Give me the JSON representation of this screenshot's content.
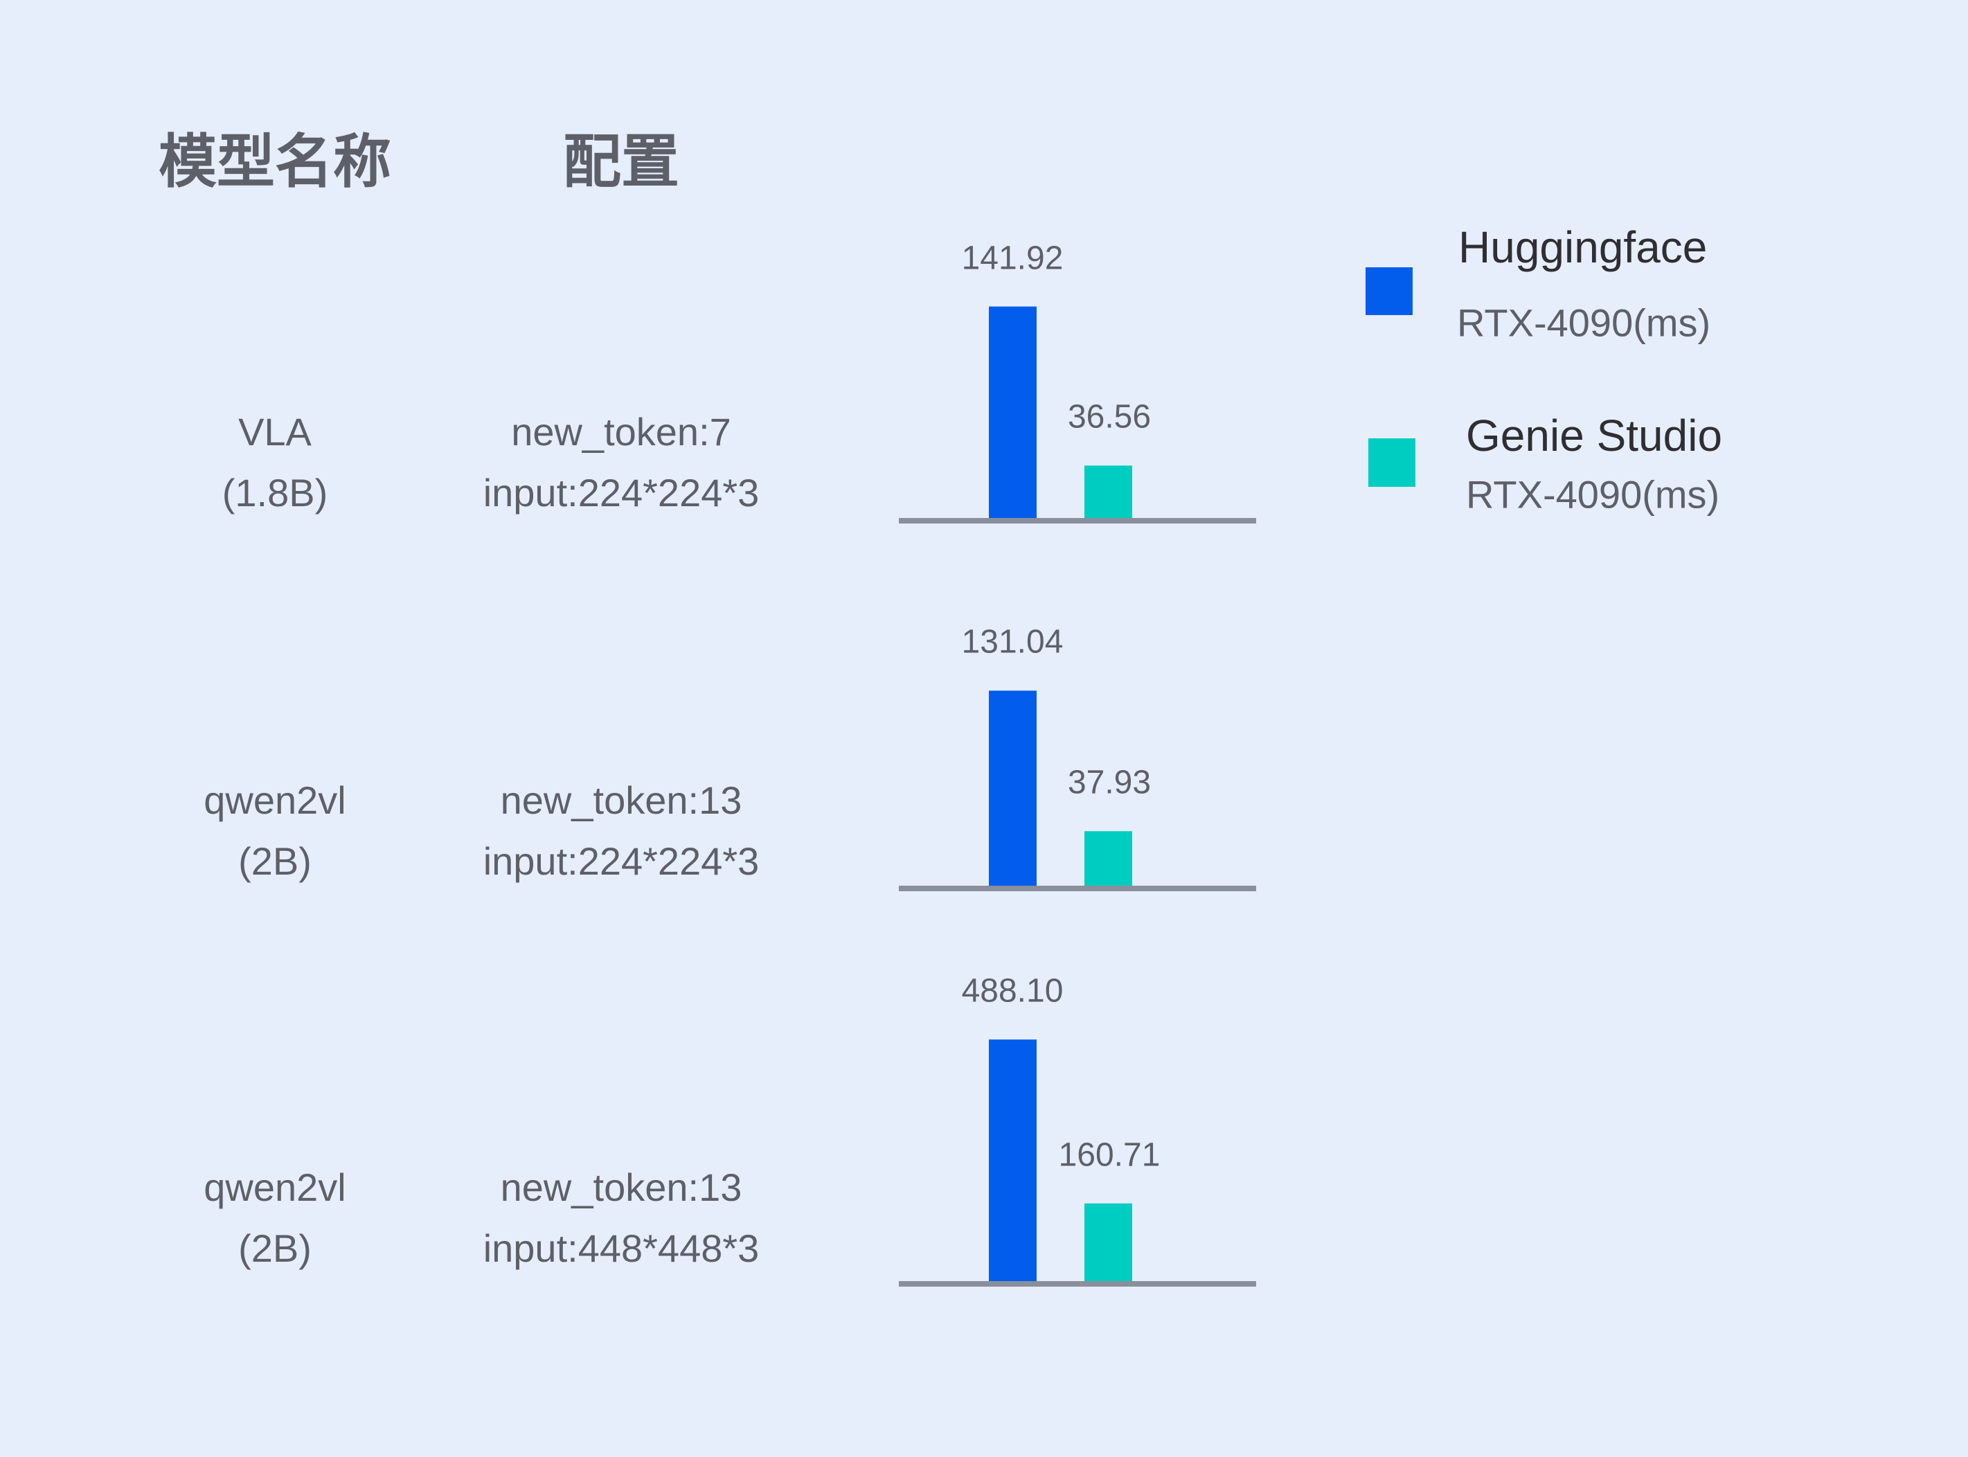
{
  "headers": {
    "model": "模型名称",
    "config": "配置"
  },
  "colors": {
    "huggingface": "#025ded",
    "genie_studio": "#00cdc1",
    "baseline": "#8a8f9c",
    "background": "#e7eefb"
  },
  "legend": [
    {
      "title": "Huggingface",
      "sub": "RTX-4090(ms)"
    },
    {
      "title": "Genie Studio",
      "sub": "RTX-4090(ms)"
    }
  ],
  "rows": [
    {
      "model": "VLA",
      "size": "(1.8B)",
      "config1": "new_token:7",
      "config2": "input:224*224*3",
      "hf_label": "141.92",
      "gs_label": "36.56"
    },
    {
      "model": "qwen2vl",
      "size": "(2B)",
      "config1": "new_token:13",
      "config2": "input:224*224*3",
      "hf_label": "131.04",
      "gs_label": "37.93"
    },
    {
      "model": "qwen2vl",
      "size": "(2B)",
      "config1": "new_token:13",
      "config2": "input:448*448*3",
      "hf_label": "488.10",
      "gs_label": "160.71"
    }
  ],
  "chart_data": {
    "type": "bar",
    "categories": [
      "VLA (1.8B) new_token:7 input:224*224*3",
      "qwen2vl (2B) new_token:13 input:224*224*3",
      "qwen2vl (2B) new_token:13 input:448*448*3"
    ],
    "series": [
      {
        "name": "Huggingface RTX-4090(ms)",
        "values": [
          141.92,
          131.04,
          488.1
        ]
      },
      {
        "name": "Genie Studio RTX-4090(ms)",
        "values": [
          36.56,
          37.93,
          160.71
        ]
      }
    ],
    "legend": "top-right",
    "grid": false
  }
}
